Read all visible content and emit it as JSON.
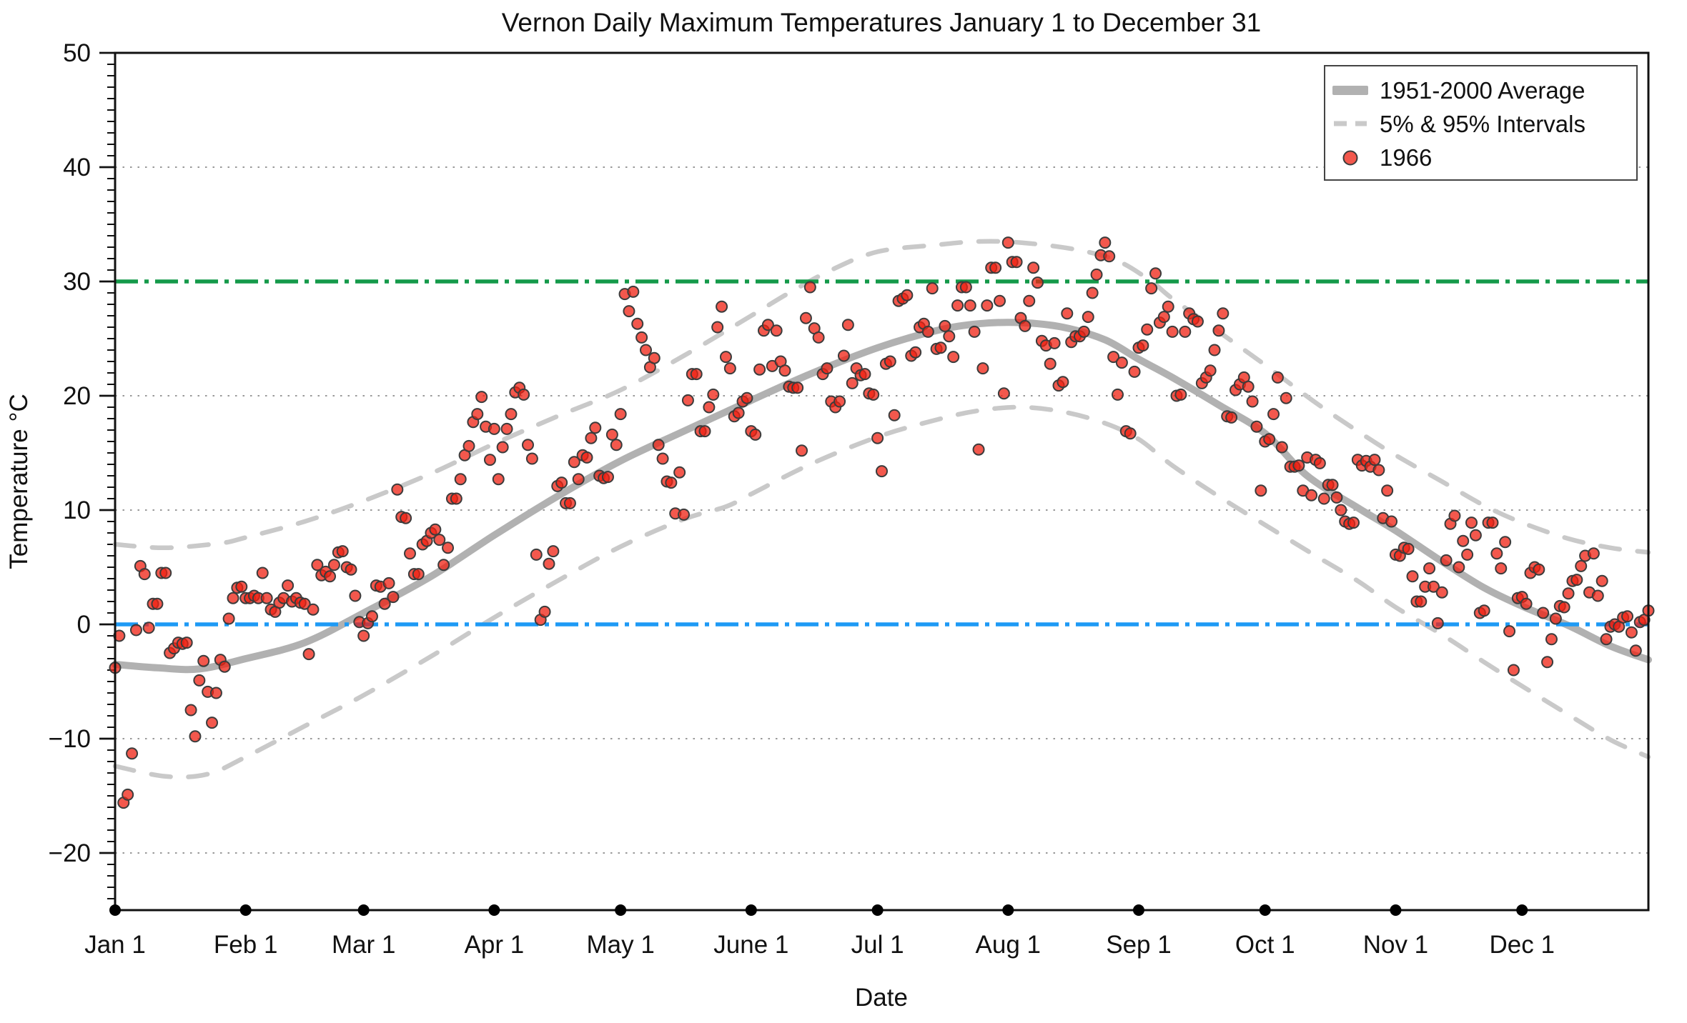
{
  "title": "Vernon Daily Maximum Temperatures January 1 to December 31",
  "axes": {
    "x_label": "Date",
    "y_label": "Temperature °C"
  },
  "legend": {
    "items": [
      {
        "label": "1951-2000 Average",
        "marker": "thick-gray-line"
      },
      {
        "label": "5% & 95% Intervals",
        "marker": "gray-dashed-line"
      },
      {
        "label": "1966",
        "marker": "red-dot"
      }
    ]
  },
  "colors": {
    "average_line": "#b1b1b1",
    "interval_line": "#c9c9c9",
    "green_30c_line": "#159a4a",
    "blue_0c_line": "#1e9af5",
    "scatter_fill": "#ef2011",
    "scatter_stroke": "#3c3c3c",
    "gridline": "#999999",
    "axis": "#111111"
  },
  "chart_data": {
    "type": "scatter",
    "title": "Vernon Daily Maximum Temperatures January 1 to December 31",
    "xlabel": "Date",
    "ylabel": "Temperature °C",
    "grid": "dotted horizontal at every 10 °C",
    "legend_position": "upper right inside plot",
    "ylim": [
      -25,
      50
    ],
    "xlim_days": [
      0,
      364
    ],
    "y_major_ticks": [
      50,
      40,
      30,
      20,
      10,
      0,
      -10,
      -20
    ],
    "y_minor_tick_step": 1,
    "x_tick_labels": [
      "Jan 1",
      "Feb 1",
      "Mar 1",
      "Apr 1",
      "May 1",
      "June 1",
      "Jul 1",
      "Aug 1",
      "Sep 1",
      "Oct 1",
      "Nov 1",
      "Dec 1"
    ],
    "x_tick_days": [
      0,
      31,
      59,
      90,
      120,
      151,
      181,
      212,
      243,
      273,
      304,
      334
    ],
    "reference_lines": [
      {
        "value": 30,
        "style": "dash-dot",
        "color": "#159a4a",
        "name": "30C-reference"
      },
      {
        "value": 0,
        "style": "dash-dot",
        "color": "#1e9af5",
        "name": "0C-reference"
      }
    ],
    "series": [
      {
        "name": "1951-2000 Average",
        "type": "smooth-line",
        "points_day_value": [
          [
            0,
            -3.5
          ],
          [
            10,
            -3.8
          ],
          [
            20,
            -3.9
          ],
          [
            31,
            -3.0
          ],
          [
            45,
            -1.6
          ],
          [
            59,
            1.0
          ],
          [
            75,
            4.2
          ],
          [
            90,
            7.8
          ],
          [
            105,
            11.2
          ],
          [
            120,
            14.3
          ],
          [
            135,
            16.9
          ],
          [
            151,
            19.6
          ],
          [
            165,
            21.9
          ],
          [
            181,
            24.2
          ],
          [
            195,
            25.7
          ],
          [
            205,
            26.3
          ],
          [
            215,
            26.4
          ],
          [
            225,
            26.0
          ],
          [
            235,
            24.9
          ],
          [
            243,
            23.2
          ],
          [
            251,
            21.6
          ],
          [
            262,
            19.2
          ],
          [
            273,
            16.7
          ],
          [
            283,
            13.0
          ],
          [
            295,
            10.2
          ],
          [
            304,
            8.2
          ],
          [
            315,
            5.5
          ],
          [
            325,
            3.2
          ],
          [
            334,
            1.6
          ],
          [
            345,
            -0.1
          ],
          [
            355,
            -1.9
          ],
          [
            364,
            -3.1
          ]
        ]
      },
      {
        "name": "95% Interval",
        "type": "smooth-dashed-line",
        "points_day_value": [
          [
            0,
            7.0
          ],
          [
            12,
            6.7
          ],
          [
            25,
            7.1
          ],
          [
            31,
            7.6
          ],
          [
            45,
            9.0
          ],
          [
            59,
            10.8
          ],
          [
            75,
            13.2
          ],
          [
            90,
            15.8
          ],
          [
            105,
            18.2
          ],
          [
            120,
            20.5
          ],
          [
            135,
            23.5
          ],
          [
            151,
            27.0
          ],
          [
            160,
            29.0
          ],
          [
            170,
            31.0
          ],
          [
            181,
            32.6
          ],
          [
            195,
            33.2
          ],
          [
            205,
            33.5
          ],
          [
            215,
            33.4
          ],
          [
            228,
            32.8
          ],
          [
            238,
            31.8
          ],
          [
            246,
            30.0
          ],
          [
            251,
            28.5
          ],
          [
            262,
            25.6
          ],
          [
            273,
            22.7
          ],
          [
            285,
            19.4
          ],
          [
            295,
            16.9
          ],
          [
            304,
            14.8
          ],
          [
            315,
            12.5
          ],
          [
            325,
            10.4
          ],
          [
            334,
            8.9
          ],
          [
            345,
            7.5
          ],
          [
            355,
            6.7
          ],
          [
            364,
            6.3
          ]
        ]
      },
      {
        "name": "5% Interval",
        "type": "smooth-dashed-line",
        "points_day_value": [
          [
            0,
            -12.4
          ],
          [
            12,
            -13.3
          ],
          [
            22,
            -13.1
          ],
          [
            31,
            -11.6
          ],
          [
            45,
            -8.9
          ],
          [
            59,
            -6.2
          ],
          [
            75,
            -2.8
          ],
          [
            90,
            0.6
          ],
          [
            105,
            3.8
          ],
          [
            120,
            6.8
          ],
          [
            135,
            9.2
          ],
          [
            145,
            10.3
          ],
          [
            151,
            11.4
          ],
          [
            165,
            14.0
          ],
          [
            181,
            16.4
          ],
          [
            195,
            17.9
          ],
          [
            205,
            18.7
          ],
          [
            215,
            19.0
          ],
          [
            225,
            18.6
          ],
          [
            235,
            17.6
          ],
          [
            243,
            16.2
          ],
          [
            251,
            13.9
          ],
          [
            262,
            11.2
          ],
          [
            273,
            8.7
          ],
          [
            285,
            6.0
          ],
          [
            295,
            3.8
          ],
          [
            304,
            1.5
          ],
          [
            315,
            -0.9
          ],
          [
            325,
            -3.3
          ],
          [
            334,
            -5.4
          ],
          [
            345,
            -7.9
          ],
          [
            355,
            -10.1
          ],
          [
            364,
            -11.6
          ]
        ]
      },
      {
        "name": "1966",
        "type": "scatter",
        "note": "one value per day, Jan 1 through Dec 31 1966, day index = array position",
        "values": [
          -3.8,
          -1.0,
          -15.6,
          -14.9,
          -11.3,
          -0.5,
          5.1,
          4.4,
          -0.3,
          1.8,
          1.8,
          4.5,
          4.5,
          -2.5,
          -2.1,
          -1.6,
          -1.7,
          -1.6,
          -7.5,
          -9.8,
          -4.9,
          -3.2,
          -5.9,
          -8.6,
          -6.0,
          -3.1,
          -3.7,
          0.5,
          2.3,
          3.2,
          3.3,
          2.3,
          2.3,
          2.5,
          2.3,
          4.5,
          2.3,
          1.3,
          1.1,
          1.9,
          2.3,
          3.4,
          2.0,
          2.3,
          1.9,
          1.8,
          -2.6,
          1.3,
          5.2,
          4.3,
          4.6,
          4.2,
          5.2,
          6.3,
          6.4,
          5.0,
          4.8,
          2.5,
          0.2,
          -1.0,
          0.1,
          0.7,
          3.4,
          3.3,
          1.8,
          3.6,
          2.4,
          11.8,
          9.4,
          9.3,
          6.2,
          4.4,
          4.4,
          7.0,
          7.3,
          8.0,
          8.3,
          7.4,
          5.2,
          6.7,
          11.0,
          11.0,
          12.7,
          14.8,
          15.6,
          17.7,
          18.4,
          19.9,
          17.3,
          14.4,
          17.1,
          12.7,
          15.5,
          17.1,
          18.4,
          20.3,
          20.7,
          20.1,
          15.7,
          14.5,
          6.1,
          0.4,
          1.1,
          5.3,
          6.4,
          12.1,
          12.4,
          10.6,
          10.6,
          14.2,
          12.7,
          14.8,
          14.6,
          16.3,
          17.2,
          13.0,
          12.8,
          12.9,
          16.6,
          15.7,
          18.4,
          28.9,
          27.4,
          29.1,
          26.3,
          25.1,
          24.0,
          22.5,
          23.3,
          15.7,
          14.5,
          12.5,
          12.4,
          9.7,
          13.3,
          9.6,
          19.6,
          21.9,
          21.9,
          16.9,
          16.9,
          19.0,
          20.1,
          26.0,
          27.8,
          23.4,
          22.4,
          18.2,
          18.5,
          19.5,
          19.8,
          16.9,
          16.6,
          22.3,
          25.7,
          26.2,
          22.6,
          25.7,
          23.0,
          22.2,
          20.8,
          20.7,
          20.7,
          15.2,
          26.8,
          29.5,
          25.9,
          25.1,
          21.9,
          22.4,
          19.5,
          19.0,
          19.5,
          23.5,
          26.2,
          21.1,
          22.4,
          21.8,
          21.9,
          20.2,
          20.1,
          16.3,
          13.4,
          22.8,
          23.0,
          18.3,
          28.3,
          28.5,
          28.8,
          23.5,
          23.8,
          26.0,
          26.3,
          25.6,
          29.4,
          24.1,
          24.2,
          26.1,
          25.2,
          23.4,
          27.9,
          29.5,
          29.5,
          27.9,
          25.6,
          15.3,
          22.4,
          27.9,
          31.2,
          31.2,
          28.3,
          20.2,
          33.4,
          31.7,
          31.7,
          26.8,
          26.1,
          28.3,
          31.2,
          29.9,
          24.8,
          24.4,
          22.8,
          24.6,
          20.9,
          21.2,
          27.2,
          24.7,
          25.2,
          25.2,
          25.6,
          26.9,
          29.0,
          30.6,
          32.3,
          33.4,
          32.2,
          23.4,
          20.1,
          22.9,
          16.9,
          16.7,
          22.1,
          24.2,
          24.4,
          25.8,
          29.4,
          30.7,
          26.4,
          26.9,
          27.8,
          25.6,
          20.0,
          20.1,
          25.6,
          27.2,
          26.7,
          26.5,
          21.1,
          21.6,
          22.2,
          24.0,
          25.7,
          27.2,
          18.2,
          18.1,
          20.5,
          21.0,
          21.6,
          20.8,
          19.5,
          17.3,
          11.7,
          16.0,
          16.2,
          18.4,
          21.6,
          15.5,
          19.8,
          13.8,
          13.8,
          13.9,
          11.7,
          14.6,
          11.3,
          14.4,
          14.1,
          11.0,
          12.2,
          12.2,
          11.1,
          10.0,
          9.0,
          8.8,
          8.9,
          14.4,
          13.9,
          14.3,
          13.8,
          14.4,
          13.5,
          9.3,
          11.7,
          9.0,
          6.1,
          6.0,
          6.7,
          6.6,
          4.2,
          2.0,
          2.0,
          3.3,
          4.9,
          3.3,
          0.1,
          2.8,
          5.6,
          8.8,
          9.5,
          5.0,
          7.3,
          6.1,
          8.9,
          7.8,
          1.0,
          1.2,
          8.9,
          8.9,
          6.2,
          4.9,
          7.2,
          -0.6,
          -4.0,
          2.3,
          2.4,
          1.8,
          4.5,
          5.0,
          4.8,
          1.0,
          -3.3,
          -1.3,
          0.5,
          1.6,
          1.5,
          2.7,
          3.8,
          3.9,
          5.1,
          6.0,
          2.8,
          6.2,
          2.5,
          3.8,
          -1.3,
          -0.2,
          0.0,
          -0.2,
          0.6,
          0.7,
          -0.7,
          -2.3,
          0.2,
          0.4,
          1.2
        ]
      }
    ]
  }
}
